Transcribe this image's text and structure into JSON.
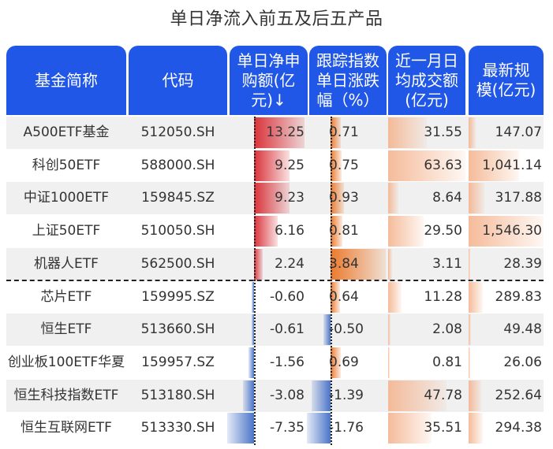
{
  "title": "单日净流入前五及后五产品",
  "headers": [
    {
      "label": "基金简称"
    },
    {
      "label": "代码"
    },
    {
      "label": "单日净申购额(亿元)↓"
    },
    {
      "label": "跟踪指数单日涨跌幅（%）"
    },
    {
      "label": "近一月日均成交额(亿元)"
    },
    {
      "label": "最新规模(亿元)"
    }
  ],
  "colors": {
    "header_bg": "#2157e6",
    "positive_flow": "#d9333a",
    "negative_flow": "#4a74c9",
    "positive_index": "#ec7a2d",
    "volume_bar": "#f4b48f",
    "row_alt": "#f0f0f0"
  },
  "rows": [
    {
      "name": "A500ETF基金",
      "code": "512050.SH",
      "net": "13.25",
      "index": "0.71",
      "volume": "31.55",
      "aum": "147.07"
    },
    {
      "name": "科创50ETF",
      "code": "588000.SH",
      "net": "9.25",
      "index": "0.75",
      "volume": "63.63",
      "aum": "1,041.14"
    },
    {
      "name": "中证1000ETF",
      "code": "159845.SZ",
      "net": "9.23",
      "index": "0.93",
      "volume": "8.64",
      "aum": "317.88"
    },
    {
      "name": "上证50ETF",
      "code": "510050.SH",
      "net": "6.16",
      "index": "0.81",
      "volume": "29.50",
      "aum": "1,546.30"
    },
    {
      "name": "机器人ETF",
      "code": "562500.SH",
      "net": "2.24",
      "index": "3.84",
      "volume": "3.11",
      "aum": "28.39"
    },
    {
      "name": "芯片ETF",
      "code": "159995.SZ",
      "net": "-0.60",
      "index": "0.64",
      "volume": "11.28",
      "aum": "289.83"
    },
    {
      "name": "恒生ETF",
      "code": "513660.SH",
      "net": "-0.61",
      "index": "-0.50",
      "volume": "2.08",
      "aum": "49.48"
    },
    {
      "name": "创业板100ETF华夏",
      "code": "159957.SZ",
      "net": "-1.56",
      "index": "0.69",
      "volume": "0.81",
      "aum": "26.06"
    },
    {
      "name": "恒生科技指数ETF",
      "code": "513180.SH",
      "net": "-3.08",
      "index": "-1.39",
      "volume": "47.78",
      "aum": "252.64"
    },
    {
      "name": "恒生互联网ETF",
      "code": "513330.SH",
      "net": "-7.35",
      "index": "-1.76",
      "volume": "35.51",
      "aum": "294.38"
    }
  ],
  "chart_data": {
    "type": "table",
    "title": "单日净流入前五及后五产品",
    "columns": [
      "基金简称",
      "代码",
      "单日净申购额(亿元)",
      "跟踪指数单日涨跌幅（%）",
      "近一月日均成交额(亿元)",
      "最新规模(亿元)"
    ],
    "sort": "单日净申购额(亿元) descending",
    "groups": [
      "前五 (top 5 net inflow)",
      "后五 (bottom 5 net inflow)"
    ],
    "data": [
      [
        "A500ETF基金",
        "512050.SH",
        13.25,
        0.71,
        31.55,
        147.07
      ],
      [
        "科创50ETF",
        "588000.SH",
        9.25,
        0.75,
        63.63,
        1041.14
      ],
      [
        "中证1000ETF",
        "159845.SZ",
        9.23,
        0.93,
        8.64,
        317.88
      ],
      [
        "上证50ETF",
        "510050.SH",
        6.16,
        0.81,
        29.5,
        1546.3
      ],
      [
        "机器人ETF",
        "562500.SH",
        2.24,
        3.84,
        3.11,
        28.39
      ],
      [
        "芯片ETF",
        "159995.SZ",
        -0.6,
        0.64,
        11.28,
        289.83
      ],
      [
        "恒生ETF",
        "513660.SH",
        -0.61,
        -0.5,
        2.08,
        49.48
      ],
      [
        "创业板100ETF华夏",
        "159957.SZ",
        -1.56,
        0.69,
        0.81,
        26.06
      ],
      [
        "恒生科技指数ETF",
        "513180.SH",
        -3.08,
        -1.39,
        47.78,
        252.64
      ],
      [
        "恒生互联网ETF",
        "513330.SH",
        -7.35,
        -1.76,
        35.51,
        294.38
      ]
    ],
    "data_bars": {
      "net_inflow": {
        "positive_color": "#d9333a",
        "negative_color": "#4a74c9",
        "axis": "dotted"
      },
      "index_change": {
        "positive_color": "#ec7a2d",
        "negative_color": "#4a74c9",
        "axis": "dotted"
      },
      "avg_volume": {
        "color": "#f4b48f"
      },
      "aum": {
        "color": "#f4b48f"
      }
    }
  }
}
